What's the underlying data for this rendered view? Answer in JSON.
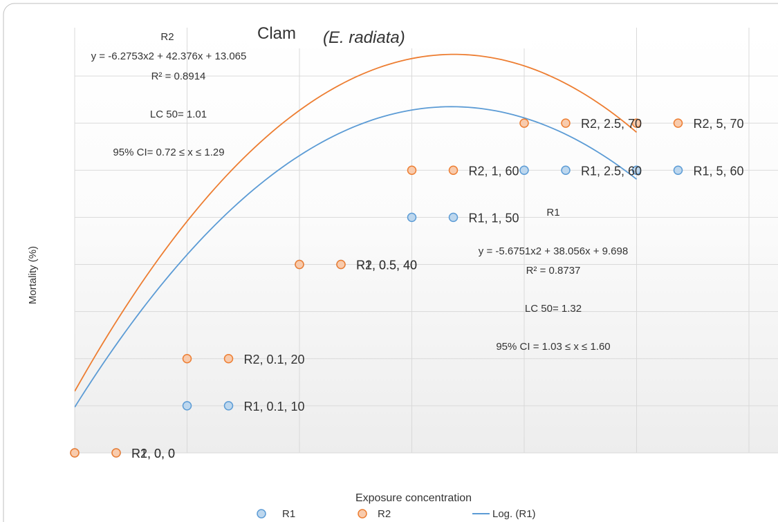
{
  "chart_data": {
    "type": "scatter",
    "title": "Clam",
    "title_italic": "(E. radiata)",
    "xlabel": "Exposure concentration",
    "ylabel": "Mortality (%)",
    "ylim": [
      0,
      80
    ],
    "grid": true,
    "legend_position": "bottom",
    "series": [
      {
        "name": "R1",
        "color": "#5b9bd5",
        "points": [
          {
            "x": 0,
            "y": 0,
            "label": "R1, 0, 0"
          },
          {
            "x": 0.1,
            "y": 10,
            "label": "R1, 0.1, 10"
          },
          {
            "x": 0.5,
            "y": 40,
            "label": "R1, 0.5, 40"
          },
          {
            "x": 1,
            "y": 50,
            "label": "R1, 1, 50"
          },
          {
            "x": 2.5,
            "y": 60,
            "label": "R1, 2.5, 60"
          },
          {
            "x": 5,
            "y": 60,
            "label": "R1, 5, 60"
          }
        ]
      },
      {
        "name": "R2",
        "color": "#ed7d31",
        "points": [
          {
            "x": 0,
            "y": 0,
            "label": "R2, 0, 0"
          },
          {
            "x": 0.1,
            "y": 20,
            "label": "R2, 0.1, 20"
          },
          {
            "x": 0.5,
            "y": 40,
            "label": "R2, 0.5, 40"
          },
          {
            "x": 1,
            "y": 60,
            "label": "R2, 1, 60"
          },
          {
            "x": 2.5,
            "y": 70,
            "label": "R2, 2.5, 70"
          },
          {
            "x": 5,
            "y": 70,
            "label": "R2, 5, 70"
          }
        ]
      }
    ],
    "trendlines": [
      {
        "name": "Log. (R1)",
        "series": "R1",
        "color": "#5b9bd5",
        "coef": [
          -5.6751,
          38.056,
          9.698
        ]
      },
      {
        "series": "R2",
        "color": "#ed7d31",
        "coef": [
          -6.2753,
          42.376,
          13.065
        ]
      }
    ],
    "legend": [
      {
        "label": "R1",
        "kind": "marker",
        "color": "#5b9bd5"
      },
      {
        "label": "R2",
        "kind": "marker",
        "color": "#ed7d31"
      },
      {
        "label": "Log. (R1)",
        "kind": "line",
        "color": "#5b9bd5"
      }
    ],
    "annotations": {
      "r2_block": [
        "R2",
        "y = -6.2753x2 + 42.376x + 13.065",
        "R² = 0.8914",
        "LC 50= 1.01",
        "95% CI= 0.72 ≤ x ≤ 1.29"
      ],
      "r1_block": [
        "R1",
        "y = -5.6751x2 + 38.056x + 9.698",
        "R² = 0.8737",
        "LC 50= 1.32",
        "95% CI = 1.03 ≤ x ≤ 1.60"
      ]
    }
  }
}
